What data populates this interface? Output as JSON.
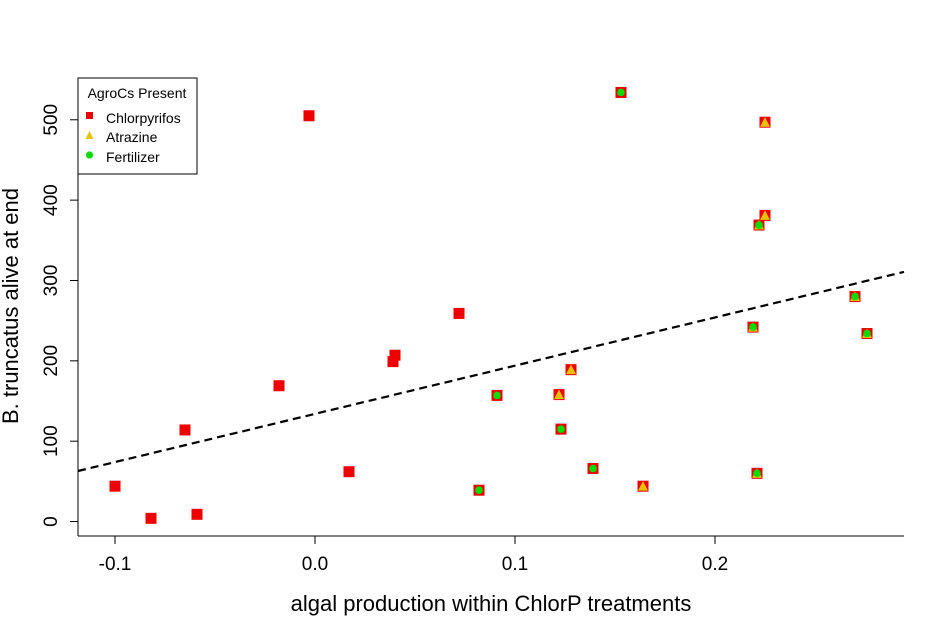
{
  "chart_data": {
    "type": "scatter",
    "title": "",
    "xlabel": "algal production within ChlorP treatments",
    "ylabel": "B. truncatus alive at end",
    "xlim": [
      -0.1185,
      0.2945
    ],
    "ylim": [
      -18,
      552
    ],
    "xticks": [
      -0.1,
      0.0,
      0.1,
      0.2
    ],
    "xtick_labels": [
      "-0.1",
      "0.0",
      "0.1",
      "0.2"
    ],
    "yticks": [
      0,
      100,
      200,
      300,
      400,
      500
    ],
    "ytick_labels": [
      "0",
      "100",
      "200",
      "300",
      "400",
      "500"
    ],
    "grid": false,
    "legend": {
      "title": "AgroCs Present",
      "position": "top-left",
      "entries": [
        {
          "label": "Chlorpyrifos",
          "marker": "square",
          "color": "#ee0000"
        },
        {
          "label": "Atrazine",
          "marker": "triangle",
          "color": "#e6c200"
        },
        {
          "label": "Fertilizer",
          "marker": "circle",
          "color": "#00dd00"
        }
      ]
    },
    "trendline": {
      "style": "dashed",
      "color": "#000000",
      "intercept": 134,
      "slope": 600
    },
    "points": [
      {
        "x": -0.1,
        "y": 44,
        "atrazine": false,
        "fertilizer": false
      },
      {
        "x": -0.082,
        "y": 4,
        "atrazine": false,
        "fertilizer": false
      },
      {
        "x": -0.065,
        "y": 114,
        "atrazine": false,
        "fertilizer": false
      },
      {
        "x": -0.059,
        "y": 9,
        "atrazine": false,
        "fertilizer": false
      },
      {
        "x": -0.018,
        "y": 169,
        "atrazine": false,
        "fertilizer": false
      },
      {
        "x": -0.003,
        "y": 505,
        "atrazine": false,
        "fertilizer": false
      },
      {
        "x": 0.017,
        "y": 62,
        "atrazine": false,
        "fertilizer": false
      },
      {
        "x": 0.039,
        "y": 199,
        "atrazine": false,
        "fertilizer": false
      },
      {
        "x": 0.04,
        "y": 207,
        "atrazine": false,
        "fertilizer": false
      },
      {
        "x": 0.072,
        "y": 259,
        "atrazine": false,
        "fertilizer": false
      },
      {
        "x": 0.082,
        "y": 39,
        "atrazine": false,
        "fertilizer": true
      },
      {
        "x": 0.091,
        "y": 157,
        "atrazine": false,
        "fertilizer": true
      },
      {
        "x": 0.122,
        "y": 158,
        "atrazine": true,
        "fertilizer": false
      },
      {
        "x": 0.123,
        "y": 115,
        "atrazine": false,
        "fertilizer": true
      },
      {
        "x": 0.128,
        "y": 189,
        "atrazine": true,
        "fertilizer": false
      },
      {
        "x": 0.139,
        "y": 66,
        "atrazine": false,
        "fertilizer": true
      },
      {
        "x": 0.153,
        "y": 534,
        "atrazine": false,
        "fertilizer": true
      },
      {
        "x": 0.164,
        "y": 44,
        "atrazine": true,
        "fertilizer": false
      },
      {
        "x": 0.219,
        "y": 242,
        "atrazine": true,
        "fertilizer": true
      },
      {
        "x": 0.221,
        "y": 60,
        "atrazine": true,
        "fertilizer": true
      },
      {
        "x": 0.222,
        "y": 369,
        "atrazine": true,
        "fertilizer": true
      },
      {
        "x": 0.225,
        "y": 381,
        "atrazine": true,
        "fertilizer": false
      },
      {
        "x": 0.225,
        "y": 497,
        "atrazine": true,
        "fertilizer": false
      },
      {
        "x": 0.27,
        "y": 280,
        "atrazine": true,
        "fertilizer": true
      },
      {
        "x": 0.276,
        "y": 234,
        "atrazine": true,
        "fertilizer": true
      }
    ]
  }
}
